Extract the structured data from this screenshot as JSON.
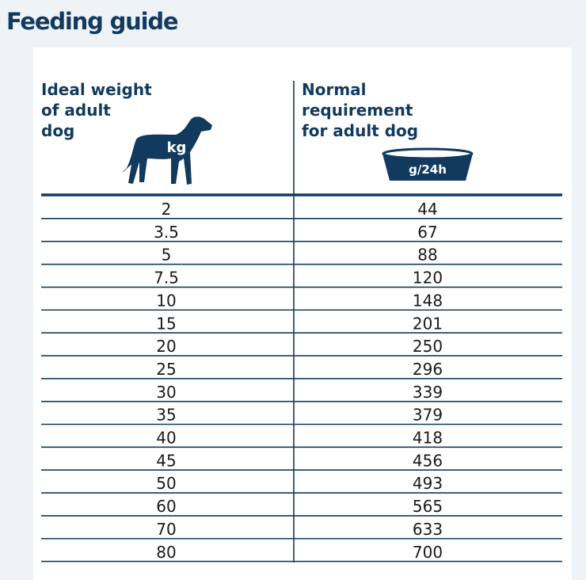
{
  "header": {
    "title": "Feeding guide"
  },
  "table": {
    "columns": [
      {
        "lines": [
          "Ideal weight",
          "of adult",
          "dog"
        ],
        "icon_label": "kg"
      },
      {
        "lines": [
          "Normal",
          "requirement",
          "for adult dog"
        ],
        "icon_label": "g/24h"
      }
    ],
    "rows": [
      [
        2,
        44
      ],
      [
        3.5,
        67
      ],
      [
        5,
        88
      ],
      [
        7.5,
        120
      ],
      [
        10,
        148
      ],
      [
        15,
        201
      ],
      [
        20,
        250
      ],
      [
        25,
        296
      ],
      [
        30,
        339
      ],
      [
        35,
        379
      ],
      [
        40,
        418
      ],
      [
        45,
        456
      ],
      [
        50,
        493
      ],
      [
        60,
        565
      ],
      [
        70,
        633
      ],
      [
        80,
        700
      ]
    ]
  }
}
